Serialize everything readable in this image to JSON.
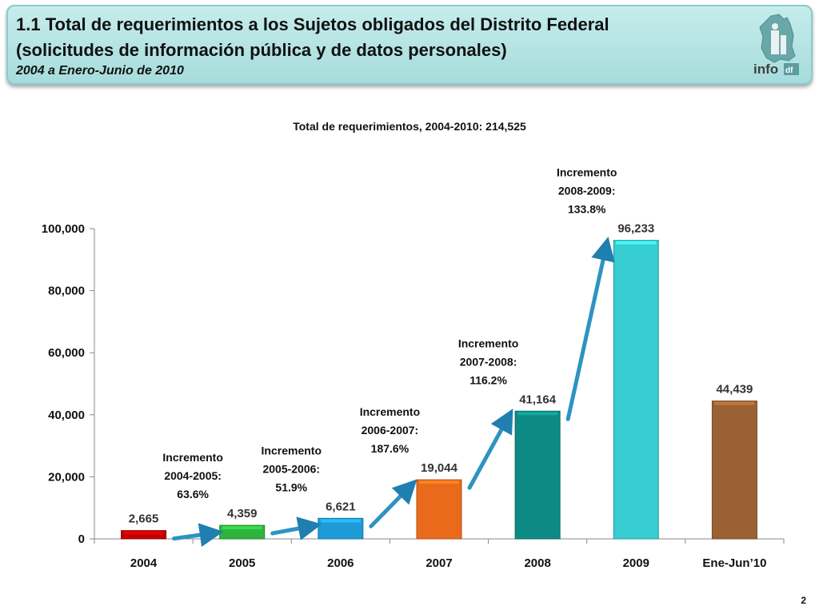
{
  "header": {
    "title_line1": "1.1 Total de requerimientos a los Sujetos obligados del Distrito Federal",
    "title_line2": "(solicitudes de información pública y de datos personales)",
    "subtitle": "2004 a Enero-Junio de 2010",
    "logo_text": "infodf"
  },
  "chart_data": {
    "type": "bar",
    "title": "Total de requerimientos, 2004-2010: 214,525",
    "categories": [
      "2004",
      "2005",
      "2006",
      "2007",
      "2008",
      "2009",
      "Ene-Jun’10"
    ],
    "values": [
      2665,
      4359,
      6621,
      19044,
      41164,
      96233,
      44439
    ],
    "value_labels": [
      "2,665",
      "4,359",
      "6,621",
      "19,044",
      "41,164",
      "96,233",
      "44,439"
    ],
    "colors": [
      "#c00000",
      "#2eb33e",
      "#1e9bd7",
      "#ea6a1c",
      "#0e8a84",
      "#38cdd0",
      "#9a6232"
    ],
    "ylim": [
      0,
      100000
    ],
    "yticks": [
      0,
      20000,
      40000,
      60000,
      80000,
      100000
    ],
    "ytick_labels": [
      "0",
      "20,000",
      "40,000",
      "60,000",
      "80,000",
      "100,000"
    ],
    "xlabel": "",
    "ylabel": "",
    "grid": false,
    "annotations": [
      {
        "lines": [
          "Incremento",
          "2004-2005:",
          "63.6%"
        ],
        "between": [
          0,
          1
        ]
      },
      {
        "lines": [
          "Incremento",
          "2005-2006:",
          "51.9%"
        ],
        "between": [
          1,
          2
        ]
      },
      {
        "lines": [
          "Incremento",
          "2006-2007:",
          "187.6%"
        ],
        "between": [
          2,
          3
        ]
      },
      {
        "lines": [
          "Incremento",
          "2007-2008:",
          "116.2%"
        ],
        "between": [
          3,
          4
        ]
      },
      {
        "lines": [
          "Incremento",
          "2008-2009:",
          "133.8%"
        ],
        "between": [
          4,
          5
        ]
      }
    ]
  },
  "page_number": "2"
}
